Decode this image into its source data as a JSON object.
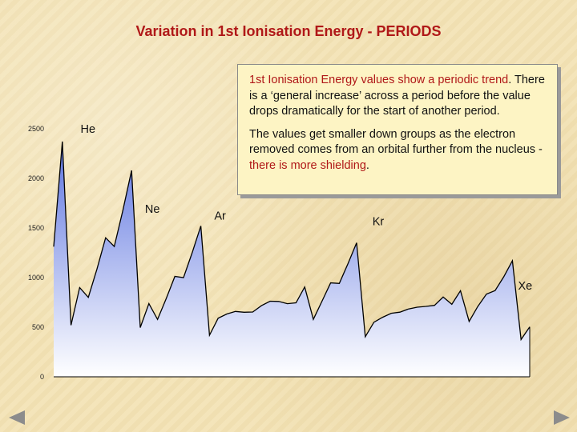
{
  "slide": {
    "title": "Variation in 1st Ionisation Energy - PERIODS"
  },
  "info_box": {
    "p1_red_start": "1st Ionisation Energy values show a periodic trend",
    "p1_rest": ". There is a ‘general increase’ across a period before the value drops dramatically for the start of another period.",
    "p2_start": "The values get smaller down groups as the electron removed comes from an orbital further from the nucleus - ",
    "p2_red": "there is more shielding",
    "p2_end": "."
  },
  "nav": {
    "prev_icon": "triangle-left-icon",
    "next_icon": "triangle-right-icon",
    "arrow_color": "#8c8c8c"
  },
  "colors": {
    "title": "#b01818",
    "area_top": "#5d74e0",
    "area_bottom": "#ffffff",
    "line": "#000000"
  },
  "chart_data": {
    "type": "area",
    "title": "Variation in 1st Ionisation Energy - PERIODS",
    "xlabel": "",
    "ylabel": "",
    "ylim": [
      0,
      2500
    ],
    "yticks": [
      0,
      500,
      1000,
      1500,
      2000,
      2500
    ],
    "series": [
      {
        "name": "1st Ionisation Energy",
        "values": [
          1312,
          2372,
          520,
          899,
          801,
          1086,
          1402,
          1314,
          1681,
          2081,
          496,
          738,
          578,
          789,
          1012,
          1000,
          1251,
          1521,
          419,
          590,
          633,
          659,
          651,
          653,
          717,
          762,
          760,
          737,
          746,
          906,
          579,
          762,
          947,
          941,
          1140,
          1351,
          403,
          550,
          600,
          640,
          652,
          684,
          702,
          710,
          720,
          804,
          731,
          868,
          558,
          709,
          834,
          869,
          1008,
          1170,
          376,
          503
        ]
      }
    ],
    "annotations": [
      {
        "label": "He",
        "index": 1
      },
      {
        "label": "Ne",
        "index": 9
      },
      {
        "label": "Ar",
        "index": 17
      },
      {
        "label": "Kr",
        "index": 35
      },
      {
        "label": "Xe",
        "index": 53
      }
    ]
  }
}
